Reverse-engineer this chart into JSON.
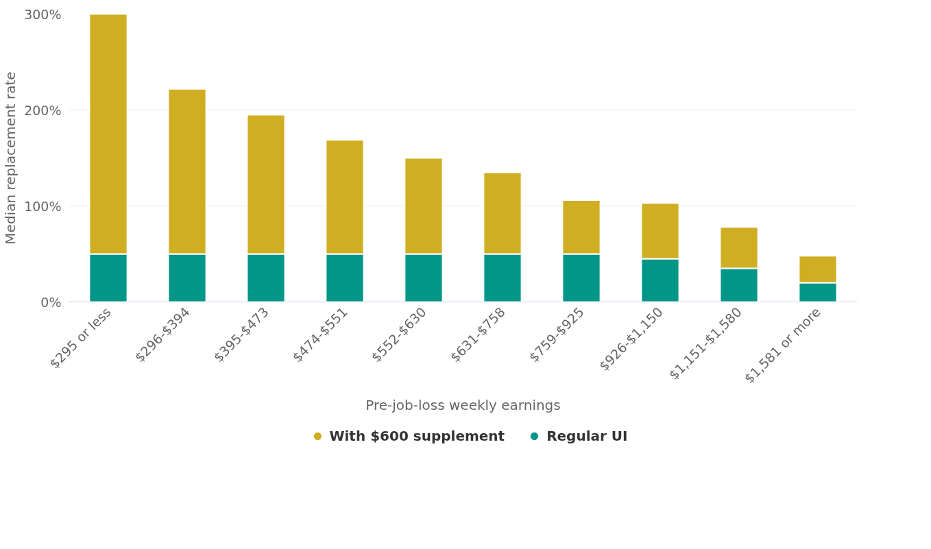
{
  "chart_data": {
    "type": "bar",
    "stacked": true,
    "xlabel": "Pre-job-loss weekly earnings",
    "ylabel": "Median replacement rate",
    "categories": [
      "$295 or less",
      "$296-$394",
      "$395-$473",
      "$474-$551",
      "$552-$630",
      "$631-$758",
      "$759-$925",
      "$926-$1,150",
      "$1,151-$1,580",
      "$1,581 or more"
    ],
    "series": [
      {
        "name": "Regular UI",
        "color": "#009688",
        "values": [
          50,
          50,
          50,
          50,
          50,
          50,
          50,
          45,
          35,
          20
        ]
      },
      {
        "name": "With $600 supplement",
        "color": "#cfae22",
        "values": [
          250,
          172,
          145,
          119,
          100,
          85,
          56,
          58,
          43,
          28
        ]
      }
    ],
    "ylim": [
      0,
      300
    ],
    "yticks": [
      {
        "value": 0,
        "label": "0%"
      },
      {
        "value": 100,
        "label": "100%"
      },
      {
        "value": 200,
        "label": "200%"
      },
      {
        "value": 300,
        "label": "300%"
      }
    ],
    "grid": "y",
    "legend": "bottom"
  }
}
